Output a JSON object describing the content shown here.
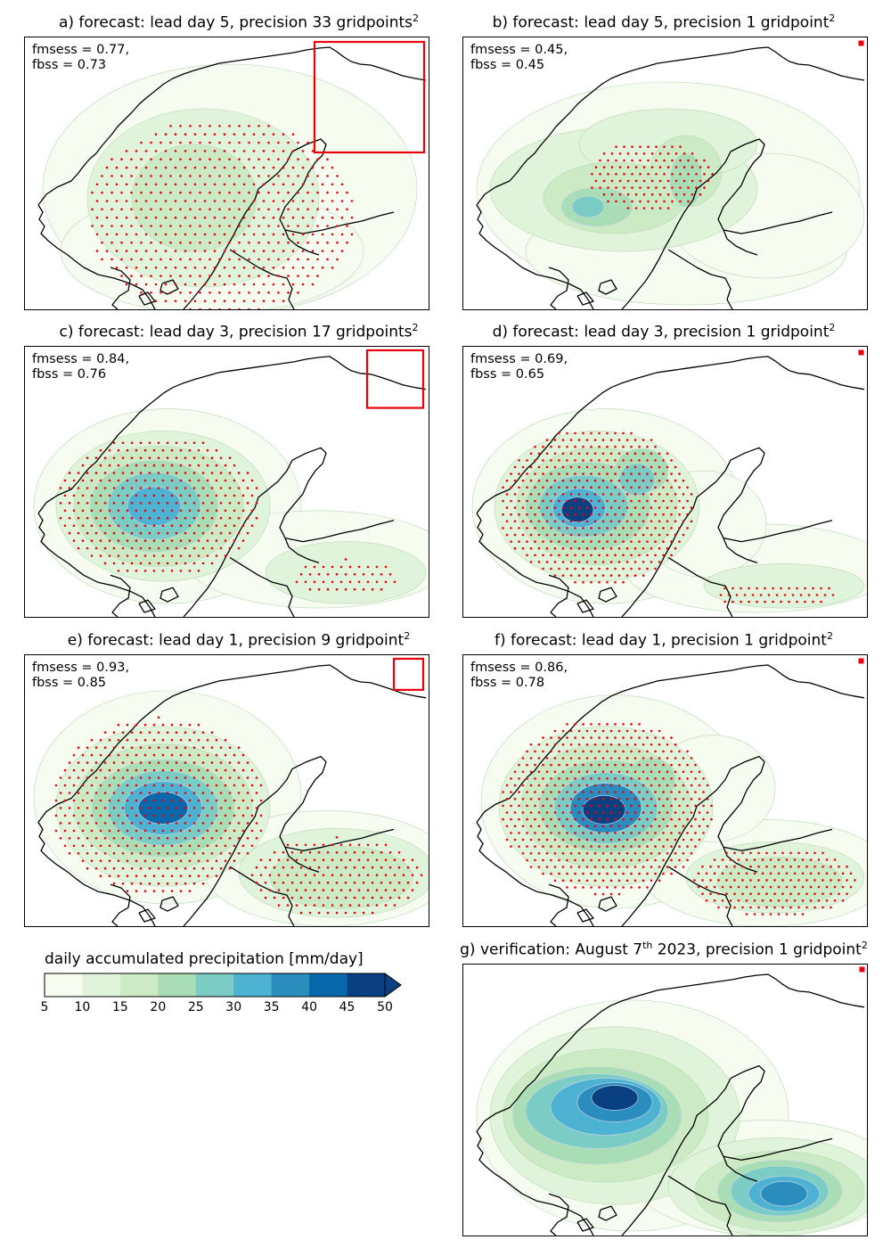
{
  "panels": [
    {
      "id": "a",
      "title": "a) forecast: lead day 5, precision 33 gridpoints",
      "sup": "2",
      "fmsess": "fmsess = 0.77,",
      "fbss": "fbss = 0.73",
      "precision_gridpoints": 33,
      "lead_day": 5,
      "blob": "broad"
    },
    {
      "id": "b",
      "title": "b) forecast: lead day 5, precision 1 gridpoint",
      "sup": "2",
      "fmsess": "fmsess = 0.45,",
      "fbss": "fbss = 0.45",
      "precision_gridpoints": 1,
      "lead_day": 5,
      "blob": "patchy"
    },
    {
      "id": "c",
      "title": "c) forecast: lead day 3, precision 17 gridpoints",
      "sup": "2",
      "fmsess": "fmsess = 0.84,",
      "fbss": "fbss = 0.76",
      "precision_gridpoints": 17,
      "lead_day": 3,
      "blob": "smooth"
    },
    {
      "id": "d",
      "title": "d) forecast: lead day 3, precision 1 gridpoint",
      "sup": "2",
      "fmsess": "fmsess = 0.69,",
      "fbss": "fbss = 0.65",
      "precision_gridpoints": 1,
      "lead_day": 3,
      "blob": "detailed"
    },
    {
      "id": "e",
      "title": "e) forecast: lead day 1, precision 9 gridpoint",
      "sup": "2",
      "fmsess": "fmsess = 0.93,",
      "fbss": "fbss = 0.85",
      "precision_gridpoints": 9,
      "lead_day": 1,
      "blob": "smooth-strong"
    },
    {
      "id": "f",
      "title": "f) forecast: lead day 1, precision 1 gridpoint",
      "sup": "2",
      "fmsess": "fmsess = 0.86,",
      "fbss": "fbss = 0.78",
      "precision_gridpoints": 1,
      "lead_day": 1,
      "blob": "detailed-strong"
    },
    {
      "id": "g",
      "title": "g) verification: August 7",
      "title_sup": "th",
      "title_tail": " 2023, precision 1 gridpoint",
      "sup": "2",
      "precision_gridpoints": 1,
      "blob": "verification"
    }
  ],
  "chart_data": {
    "type": "heatmap",
    "colorbar": {
      "title": "daily accumulated precipitation [mm/day]",
      "ticks": [
        "5",
        "10",
        "15",
        "20",
        "25",
        "30",
        "35",
        "40",
        "45",
        "50"
      ],
      "levels": [
        5,
        10,
        15,
        20,
        25,
        30,
        35,
        40,
        45,
        50
      ],
      "colors": [
        "#f7fcf0",
        "#e0f3db",
        "#ccebc5",
        "#a8ddb5",
        "#7bccc4",
        "#4eb3d3",
        "#2b8cbe",
        "#0868ac",
        "#084081"
      ],
      "extend": "max",
      "extend_color": "#084081"
    },
    "significance_marker_color": "#e8000b",
    "precision_box_color": "#e8000b"
  }
}
